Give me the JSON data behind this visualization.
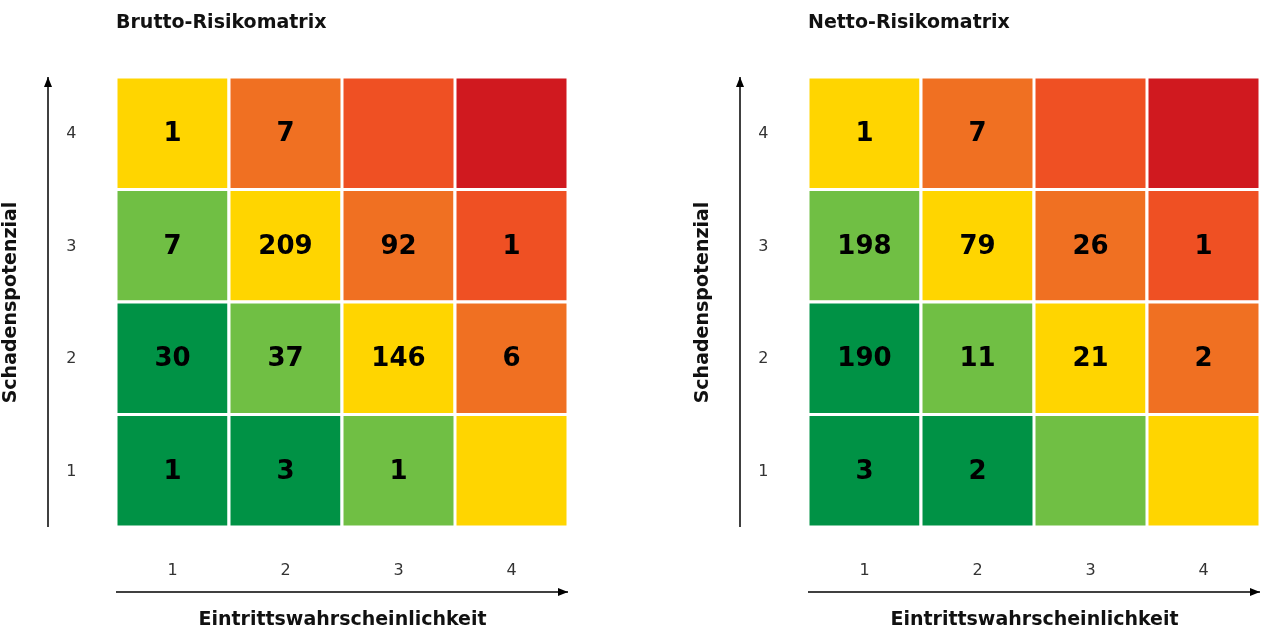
{
  "chart_data": [
    {
      "type": "heatmap",
      "title": "Brutto-Risikomatrix",
      "xlabel": "Eintrittswahrscheinlichkeit",
      "ylabel": "Schadenspotenzial",
      "categories": [
        "1",
        "2",
        "3",
        "4"
      ],
      "y_categories": [
        "4",
        "3",
        "2",
        "1"
      ],
      "cells": [
        [
          1,
          7,
          null,
          null
        ],
        [
          7,
          209,
          92,
          1
        ],
        [
          30,
          37,
          146,
          6
        ],
        [
          1,
          3,
          1,
          null
        ]
      ],
      "colors": [
        [
          "#ffd500",
          "#f07022",
          "#ef5023",
          "#d0191f"
        ],
        [
          "#70bf44",
          "#ffd500",
          "#f07022",
          "#ef5023"
        ],
        [
          "#009245",
          "#70bf44",
          "#ffd500",
          "#f07022"
        ],
        [
          "#009245",
          "#009245",
          "#70bf44",
          "#ffd500"
        ]
      ],
      "data_labels": true
    },
    {
      "type": "heatmap",
      "title": "Netto-Risikomatrix",
      "xlabel": "Eintrittswahrscheinlichkeit",
      "ylabel": "Schadenspotenzial",
      "categories": [
        "1",
        "2",
        "3",
        "4"
      ],
      "y_categories": [
        "4",
        "3",
        "2",
        "1"
      ],
      "cells": [
        [
          1,
          7,
          null,
          null
        ],
        [
          198,
          79,
          26,
          1
        ],
        [
          190,
          11,
          21,
          2
        ],
        [
          3,
          2,
          null,
          null
        ]
      ],
      "colors": [
        [
          "#ffd500",
          "#f07022",
          "#ef5023",
          "#d0191f"
        ],
        [
          "#70bf44",
          "#ffd500",
          "#f07022",
          "#ef5023"
        ],
        [
          "#009245",
          "#70bf44",
          "#ffd500",
          "#f07022"
        ],
        [
          "#009245",
          "#009245",
          "#70bf44",
          "#ffd500"
        ]
      ],
      "data_labels": true
    }
  ]
}
